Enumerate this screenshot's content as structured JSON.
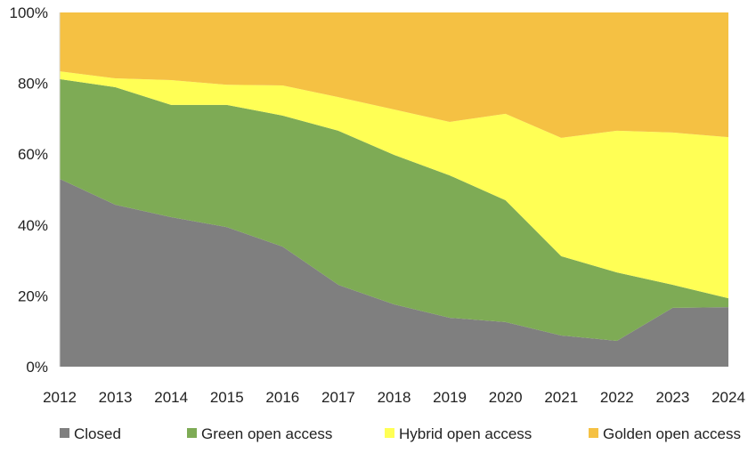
{
  "chart_data": {
    "type": "area",
    "stacked": true,
    "title": "",
    "xlabel": "",
    "ylabel": "",
    "x": [
      2012,
      2013,
      2014,
      2015,
      2016,
      2017,
      2018,
      2019,
      2020,
      2021,
      2022,
      2023,
      2024
    ],
    "ylim": [
      0,
      100
    ],
    "y_ticks": [
      "0%",
      "20%",
      "40%",
      "60%",
      "80%",
      "100%"
    ],
    "grid": false,
    "legend_position": "bottom",
    "series": [
      {
        "name": "Closed",
        "color": "#7f7f7f",
        "values": [
          53.0,
          45.7,
          42.2,
          39.4,
          33.9,
          23.1,
          17.6,
          13.8,
          12.6,
          8.8,
          7.3,
          16.6,
          16.8
        ]
      },
      {
        "name": "Green open access",
        "color": "#7eab55",
        "values": [
          28.2,
          33.2,
          31.7,
          34.5,
          37.0,
          43.5,
          42.2,
          40.2,
          34.4,
          22.4,
          19.3,
          6.5,
          2.5
        ]
      },
      {
        "name": "Hybrid open access",
        "color": "#ffff55",
        "values": [
          2.2,
          2.5,
          7.0,
          5.7,
          8.5,
          9.5,
          12.8,
          15.1,
          24.4,
          33.4,
          40.0,
          43.0,
          45.5
        ]
      },
      {
        "name": "Golden open access",
        "color": "#f5c143",
        "values": [
          16.6,
          18.6,
          19.1,
          20.4,
          20.6,
          23.9,
          27.4,
          30.9,
          28.6,
          35.4,
          33.4,
          33.9,
          35.2
        ]
      }
    ]
  }
}
